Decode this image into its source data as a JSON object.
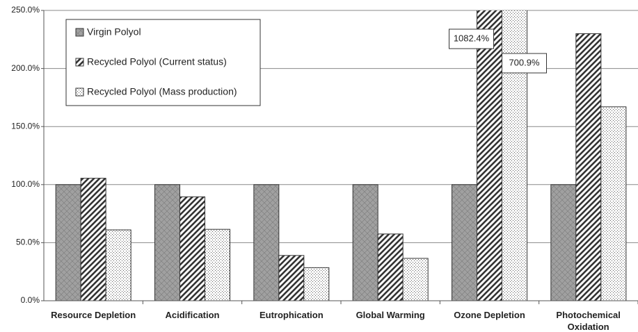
{
  "chart_data": {
    "type": "bar",
    "categories": [
      "Resource Depletion",
      "Acidification",
      "Eutrophication",
      "Global Warming",
      "Ozone Depletion",
      "Photochemical Oxidation"
    ],
    "series": [
      {
        "name": "Virgin Polyol",
        "color": "#555555",
        "pattern": "solid",
        "values": [
          100,
          100,
          100,
          100,
          100,
          100
        ]
      },
      {
        "name": "Recycled Polyol (Current status)",
        "color": "#333333",
        "pattern": "stripes",
        "values": [
          105.5,
          89.5,
          39,
          57.5,
          1082.4,
          230
        ],
        "value_labels": [
          null,
          null,
          null,
          null,
          "1082.4%",
          null
        ]
      },
      {
        "name": "Recycled Polyol (Mass production)",
        "color": "#555555",
        "pattern": "dots",
        "values": [
          61,
          61.5,
          28.5,
          36.5,
          700.9,
          167
        ],
        "value_labels": [
          null,
          null,
          null,
          null,
          "700.9%",
          null
        ]
      }
    ],
    "ylim": [
      0,
      250
    ],
    "yticks": [
      {
        "value": 0,
        "label": "0.0%"
      },
      {
        "value": 50,
        "label": "50.0%"
      },
      {
        "value": 100,
        "label": "100.0%"
      },
      {
        "value": 150,
        "label": "150.0%"
      },
      {
        "value": 200,
        "label": "200.0%"
      },
      {
        "value": 250,
        "label": "250.0%"
      }
    ],
    "grid": true,
    "legend": "upper left"
  }
}
